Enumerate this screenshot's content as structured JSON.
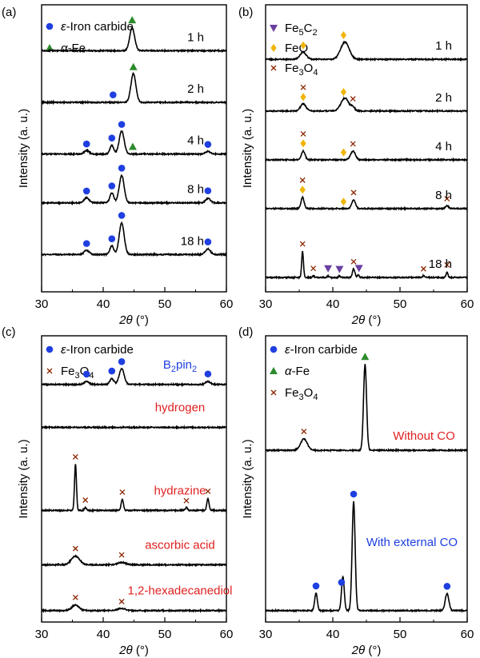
{
  "figure": {
    "colors": {
      "eps": "#1f3fe0",
      "alpha": "#2e8b2e",
      "fe5c2": "#6a3fa0",
      "feo": "#f0b400",
      "fe3o4": "#8b2500",
      "red_label": "#e02020",
      "blue_label": "#1f3fe0",
      "axis": "#000000"
    },
    "common": {
      "ylabel": "Intensity (a. u.)",
      "xlabel_main": "2θ",
      "xlabel_unit": "(°)",
      "xticks": [
        "30",
        "40",
        "50",
        "60"
      ]
    }
  },
  "chart_data": [
    {
      "panel": "(a)",
      "type": "line",
      "title": "",
      "xlabel": "2θ (°)",
      "ylabel": "Intensity (a. u.)",
      "xlim": [
        30,
        60
      ],
      "legend": [
        {
          "marker": "circle",
          "color": "#1f3fe0",
          "label_prefix": "ε",
          "label": "-Iron carbide"
        },
        {
          "marker": "triangle",
          "color": "#2e8b2e",
          "label_prefix": "α",
          "label": "-Fe"
        }
      ],
      "series": [
        {
          "name": "1 h",
          "baseline": 0.84,
          "peaks": [
            [
              44.7,
              0.9,
              0.08
            ]
          ],
          "markers": [
            {
              "type": "triangle",
              "x": 44.7
            }
          ]
        },
        {
          "name": "2 h",
          "baseline": 0.66,
          "peaks": [
            [
              44.9,
              0.9,
              0.1
            ]
          ],
          "markers": [
            {
              "type": "circle",
              "x": 41.6
            },
            {
              "type": "triangle",
              "x": 44.9
            }
          ]
        },
        {
          "name": "4 h",
          "baseline": 0.48,
          "peaks": [
            [
              37.3,
              0.9,
              0.012
            ],
            [
              41.4,
              0.7,
              0.03
            ],
            [
              43.0,
              0.9,
              0.08
            ],
            [
              57.0,
              0.9,
              0.01
            ]
          ],
          "markers": [
            {
              "type": "circle",
              "x": 37.3
            },
            {
              "type": "circle",
              "x": 41.4
            },
            {
              "type": "circle",
              "x": 43.0
            },
            {
              "type": "triangle",
              "x": 44.8
            },
            {
              "type": "circle",
              "x": 57.0
            }
          ]
        },
        {
          "name": "8 h",
          "baseline": 0.31,
          "peaks": [
            [
              37.3,
              0.9,
              0.018
            ],
            [
              41.4,
              0.7,
              0.035
            ],
            [
              43.0,
              0.9,
              0.095
            ],
            [
              57.0,
              0.9,
              0.015
            ]
          ],
          "markers": [
            {
              "type": "circle",
              "x": 37.3
            },
            {
              "type": "circle",
              "x": 41.4
            },
            {
              "type": "circle",
              "x": 43.0
            },
            {
              "type": "circle",
              "x": 57.0
            }
          ]
        },
        {
          "name": "18 h",
          "baseline": 0.13,
          "peaks": [
            [
              37.3,
              0.9,
              0.015
            ],
            [
              41.4,
              0.7,
              0.03
            ],
            [
              43.0,
              0.9,
              0.11
            ],
            [
              57.0,
              0.9,
              0.02
            ]
          ],
          "markers": [
            {
              "type": "circle",
              "x": 37.3
            },
            {
              "type": "circle",
              "x": 41.4
            },
            {
              "type": "circle",
              "x": 43.0
            },
            {
              "type": "circle",
              "x": 57.0
            }
          ]
        }
      ]
    },
    {
      "panel": "(b)",
      "type": "line",
      "title": "",
      "xlabel": "2θ (°)",
      "ylabel": "Intensity (a. u.)",
      "xlim": [
        30,
        60
      ],
      "legend": [
        {
          "marker": "triangle-down",
          "color": "#6a3fa0",
          "label": "Fe5C2",
          "formula": [
            "Fe",
            "5",
            "C",
            "2"
          ]
        },
        {
          "marker": "diamond",
          "color": "#f0b400",
          "label": "FeO",
          "formula": [
            "FeO"
          ]
        },
        {
          "marker": "cross",
          "color": "#8b2500",
          "label": "Fe3O4",
          "formula": [
            "Fe",
            "3",
            "O",
            "4"
          ]
        }
      ],
      "series": [
        {
          "name": "1 h",
          "baseline": 0.81,
          "peaks": [
            [
              35.6,
              1.0,
              0.025
            ],
            [
              41.8,
              1.4,
              0.06
            ]
          ],
          "markers": [
            {
              "type": "diamond",
              "x": 35.6
            },
            {
              "type": "diamond",
              "x": 41.6
            }
          ]
        },
        {
          "name": "2 h",
          "baseline": 0.63,
          "peaks": [
            [
              35.6,
              0.9,
              0.025
            ],
            [
              41.8,
              1.3,
              0.045
            ],
            [
              43.0,
              0.6,
              0.012
            ]
          ],
          "markers": [
            {
              "type": "diamond",
              "x": 35.6
            },
            {
              "type": "cross",
              "x": 35.6
            },
            {
              "type": "diamond",
              "x": 41.6
            },
            {
              "type": "cross",
              "x": 43.0
            }
          ]
        },
        {
          "name": "4 h",
          "baseline": 0.46,
          "peaks": [
            [
              35.6,
              0.6,
              0.03
            ],
            [
              43.0,
              0.8,
              0.03
            ]
          ],
          "markers": [
            {
              "type": "diamond",
              "x": 35.6
            },
            {
              "type": "cross",
              "x": 35.6
            },
            {
              "type": "diamond",
              "x": 41.6
            },
            {
              "type": "cross",
              "x": 43.0
            }
          ]
        },
        {
          "name": "8 h",
          "baseline": 0.29,
          "peaks": [
            [
              35.5,
              0.5,
              0.04
            ],
            [
              43.1,
              0.6,
              0.03
            ],
            [
              57.0,
              0.5,
              0.01
            ]
          ],
          "markers": [
            {
              "type": "diamond",
              "x": 35.5
            },
            {
              "type": "cross",
              "x": 35.5
            },
            {
              "type": "diamond",
              "x": 41.6
            },
            {
              "type": "cross",
              "x": 43.1
            },
            {
              "type": "cross",
              "x": 57.0
            }
          ]
        },
        {
          "name": "18 h",
          "baseline": 0.05,
          "peaks": [
            [
              35.5,
              0.3,
              0.09
            ],
            [
              37.1,
              0.3,
              0.006
            ],
            [
              39.3,
              0.3,
              0.005
            ],
            [
              41.0,
              0.3,
              0.005
            ],
            [
              43.1,
              0.4,
              0.03
            ],
            [
              43.8,
              0.3,
              0.01
            ],
            [
              53.5,
              0.3,
              0.006
            ],
            [
              57.0,
              0.3,
              0.02
            ]
          ],
          "markers": [
            {
              "type": "cross",
              "x": 35.5
            },
            {
              "type": "cross",
              "x": 37.1
            },
            {
              "type": "triangle-down",
              "x": 39.3
            },
            {
              "type": "triangle-down",
              "x": 41.0
            },
            {
              "type": "cross",
              "x": 43.1
            },
            {
              "type": "triangle-down",
              "x": 43.9
            },
            {
              "type": "cross",
              "x": 53.5
            },
            {
              "type": "cross",
              "x": 57.0
            }
          ]
        }
      ]
    },
    {
      "panel": "(c)",
      "type": "line",
      "title": "",
      "xlabel": "2θ (°)",
      "ylabel": "Intensity (a. u.)",
      "xlim": [
        30,
        60
      ],
      "legend": [
        {
          "marker": "circle",
          "color": "#1f3fe0",
          "label_prefix": "ε",
          "label": "-Iron carbide"
        },
        {
          "marker": "cross",
          "color": "#8b2500",
          "label": "Fe3O4",
          "formula": [
            "Fe",
            "3",
            "O",
            "4"
          ]
        }
      ],
      "series": [
        {
          "name": "B2pin2",
          "label_color": "#1f3fe0",
          "formula": [
            "B",
            "2",
            "pin",
            "2"
          ],
          "baseline": 0.83,
          "peaks": [
            [
              37.3,
              0.9,
              0.01
            ],
            [
              41.4,
              0.7,
              0.02
            ],
            [
              43.0,
              0.9,
              0.055
            ],
            [
              57.0,
              0.9,
              0.01
            ]
          ],
          "markers": [
            {
              "type": "circle",
              "x": 37.3
            },
            {
              "type": "circle",
              "x": 41.4
            },
            {
              "type": "circle",
              "x": 43.0
            },
            {
              "type": "circle",
              "x": 57.0
            }
          ]
        },
        {
          "name": "hydrogen",
          "label_color": "#e02020",
          "baseline": 0.68,
          "peaks": [],
          "markers": []
        },
        {
          "name": "hydrazine",
          "label_color": "#e02020",
          "baseline": 0.39,
          "peaks": [
            [
              35.5,
              0.35,
              0.16
            ],
            [
              37.1,
              0.35,
              0.01
            ],
            [
              43.1,
              0.4,
              0.04
            ],
            [
              53.5,
              0.4,
              0.01
            ],
            [
              57.0,
              0.4,
              0.04
            ]
          ],
          "markers": [
            {
              "type": "cross",
              "x": 35.5
            },
            {
              "type": "cross",
              "x": 37.1
            },
            {
              "type": "cross",
              "x": 43.1
            },
            {
              "type": "cross",
              "x": 53.5
            },
            {
              "type": "cross",
              "x": 57.0
            }
          ]
        },
        {
          "name": "ascorbic acid",
          "label_color": "#e02020",
          "baseline": 0.2,
          "peaks": [
            [
              35.5,
              1.5,
              0.03
            ],
            [
              43.0,
              1.5,
              0.008
            ]
          ],
          "markers": [
            {
              "type": "cross",
              "x": 35.5
            },
            {
              "type": "cross",
              "x": 43.0
            }
          ]
        },
        {
          "name": "1,2-hexadecanediol",
          "label_color": "#e02020",
          "baseline": 0.04,
          "peaks": [
            [
              35.5,
              1.3,
              0.02
            ],
            [
              43.0,
              1.3,
              0.008
            ]
          ],
          "markers": [
            {
              "type": "cross",
              "x": 35.5
            },
            {
              "type": "cross",
              "x": 43.0
            }
          ]
        }
      ]
    },
    {
      "panel": "(d)",
      "type": "line",
      "title": "",
      "xlabel": "2θ (°)",
      "ylabel": "Intensity (a. u.)",
      "xlim": [
        30,
        60
      ],
      "legend": [
        {
          "marker": "circle",
          "color": "#1f3fe0",
          "label_prefix": "ε",
          "label": "-Iron carbide"
        },
        {
          "marker": "triangle",
          "color": "#2e8b2e",
          "label_prefix": "α",
          "label": "-Fe"
        },
        {
          "marker": "cross",
          "color": "#8b2500",
          "label": "Fe3O4",
          "formula": [
            "Fe",
            "3",
            "O",
            "4"
          ]
        }
      ],
      "series": [
        {
          "name": "Without CO",
          "label_color": "#e02020",
          "baseline": 0.6,
          "peaks": [
            [
              35.7,
              1.1,
              0.04
            ],
            [
              44.8,
              0.5,
              0.3
            ]
          ],
          "markers": [
            {
              "type": "cross",
              "x": 35.7
            },
            {
              "type": "triangle",
              "x": 44.8
            }
          ]
        },
        {
          "name": "With external CO",
          "label_color": "#1f3fe0",
          "baseline": 0.04,
          "peaks": [
            [
              37.5,
              0.45,
              0.06
            ],
            [
              41.5,
              0.45,
              0.12
            ],
            [
              43.1,
              0.5,
              0.38
            ],
            [
              57.0,
              0.6,
              0.06
            ]
          ],
          "markers": [
            {
              "type": "circle",
              "x": 37.5
            },
            {
              "type": "circle",
              "x": 41.3
            },
            {
              "type": "circle",
              "x": 43.1
            },
            {
              "type": "circle",
              "x": 57.0
            }
          ]
        }
      ]
    }
  ]
}
